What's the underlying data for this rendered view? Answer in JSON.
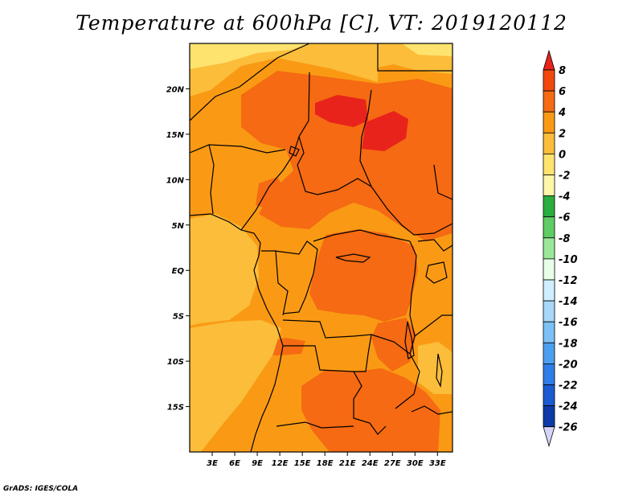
{
  "title": "Temperature at 600hPa [C], VT: 2019120112",
  "credit": "GrADS: IGES/COLA",
  "map": {
    "region": "Central Africa",
    "lon_range": [
      0,
      35
    ],
    "lat_range": [
      -20,
      25
    ],
    "lon_ticks": [
      {
        "value": 3,
        "label": "3E"
      },
      {
        "value": 6,
        "label": "6E"
      },
      {
        "value": 9,
        "label": "9E"
      },
      {
        "value": 12,
        "label": "12E"
      },
      {
        "value": 15,
        "label": "15E"
      },
      {
        "value": 18,
        "label": "18E"
      },
      {
        "value": 21,
        "label": "21E"
      },
      {
        "value": 24,
        "label": "24E"
      },
      {
        "value": 27,
        "label": "27E"
      },
      {
        "value": 30,
        "label": "30E"
      },
      {
        "value": 33,
        "label": "33E"
      }
    ],
    "lat_ticks": [
      {
        "value": 20,
        "label": "20N"
      },
      {
        "value": 15,
        "label": "15N"
      },
      {
        "value": 10,
        "label": "10N"
      },
      {
        "value": 5,
        "label": "5N"
      },
      {
        "value": 0,
        "label": "EQ"
      },
      {
        "value": -5,
        "label": "5S"
      },
      {
        "value": -10,
        "label": "10S"
      },
      {
        "value": -15,
        "label": "15S"
      }
    ]
  },
  "colorbar": {
    "labels": [
      "8",
      "6",
      "4",
      "2",
      "0",
      "-2",
      "-4",
      "-6",
      "-8",
      "-10",
      "-12",
      "-14",
      "-16",
      "-18",
      "-20",
      "-22",
      "-24",
      "-26"
    ],
    "colors": [
      "#e8231c",
      "#f2480e",
      "#f56a12",
      "#fa9a14",
      "#fbbd3a",
      "#ffe36f",
      "#fff6aa",
      "#2aae3e",
      "#5fcd64",
      "#9be79a",
      "#e8ffe8",
      "#cfeeff",
      "#a8d8f8",
      "#7cc0f5",
      "#4c9ff0",
      "#2f7de6",
      "#1a5bd2",
      "#0c3aa8",
      "#08186a",
      "#d4d4f8"
    ]
  },
  "field_colors": {
    "c4_6": "#f56a12",
    "c2_4": "#fa9a14",
    "c0_2": "#fbbd3a",
    "cm2_0": "#ffe36f",
    "cm4_m2": "#fff6aa"
  }
}
